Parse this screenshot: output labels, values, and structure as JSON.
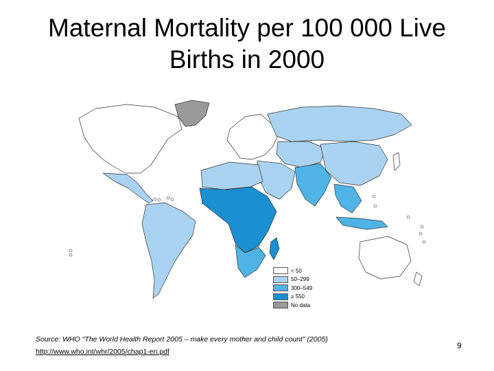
{
  "slide": {
    "title_line1": "Maternal Mortality per 100 000 Live",
    "title_line2": "Births in 2000",
    "source_text": "Source: WHO \"The World Health Report 2005 – make every mother and child count\" (2005)",
    "link_text": "http://www.who.int/whr/2005/chap1-en.pdf",
    "page_number": "9"
  },
  "legend": {
    "items": [
      {
        "label": "< 50",
        "color": "#ffffff"
      },
      {
        "label": "50–299",
        "color": "#a9d3f0"
      },
      {
        "label": "300–549",
        "color": "#4fb3e6"
      },
      {
        "label": "≥ 550",
        "color": "#1a8fd1"
      },
      {
        "label": "No data",
        "color": "#9a9a9a"
      }
    ]
  },
  "map": {
    "regions": [
      {
        "name": "Canada / USA",
        "category": "< 50"
      },
      {
        "name": "Greenland",
        "category": "No data"
      },
      {
        "name": "Mexico / Central America",
        "category": "50–299"
      },
      {
        "name": "South America",
        "category": "50–299"
      },
      {
        "name": "Europe",
        "category": "< 50"
      },
      {
        "name": "Russia",
        "category": "50–299"
      },
      {
        "name": "Central Asia",
        "category": "50–299"
      },
      {
        "name": "China",
        "category": "50–299"
      },
      {
        "name": "South Asia",
        "category": "300–549"
      },
      {
        "name": "Southeast Asia",
        "category": "300–549"
      },
      {
        "name": "Middle East",
        "category": "50–299"
      },
      {
        "name": "North Africa",
        "category": "50–299"
      },
      {
        "name": "Sub-Saharan Africa",
        "category": "≥ 550"
      },
      {
        "name": "Southern Africa",
        "category": "300–549"
      },
      {
        "name": "Australia",
        "category": "< 50"
      }
    ]
  }
}
